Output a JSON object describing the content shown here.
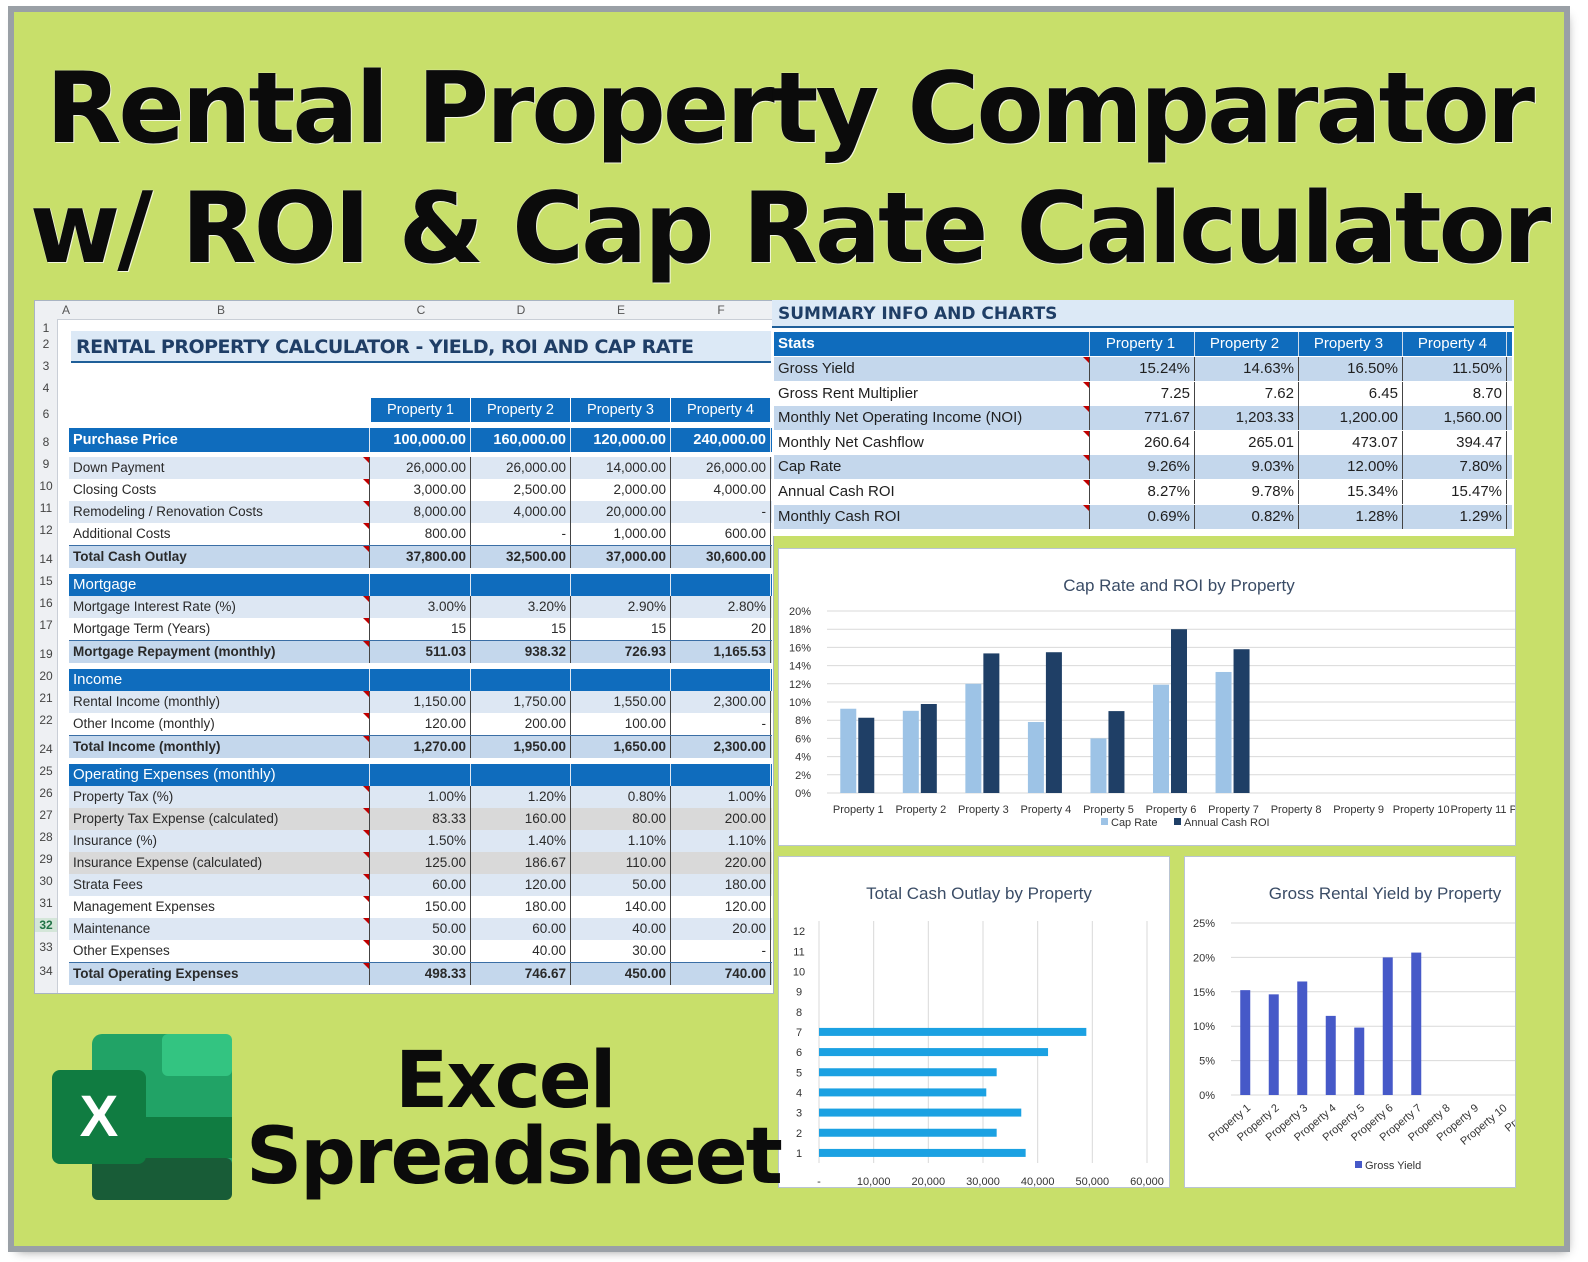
{
  "title": {
    "line1": "Rental Property Comparator",
    "line2": "w/ ROI & Cap Rate Calculator"
  },
  "caption": {
    "line1": "Excel",
    "line2": "Spreadsheet"
  },
  "logo": {
    "letter": "X",
    "icon": "excel-icon",
    "colors": {
      "dark": "#185c37",
      "mid": "#21a366",
      "light": "#33c481",
      "tile": "#107c41"
    }
  },
  "colors": {
    "background": "#c8df6a",
    "accent_blue": "#0f6cbd",
    "light_blue": "#c4d7ec",
    "cap_rate": "#9dc3e6",
    "cash_roi": "#1f3f66",
    "bar_blue": "#1ba1e2",
    "yield_blue": "#4659c8"
  },
  "sheet": {
    "columns": [
      "A",
      "B",
      "C",
      "D",
      "E",
      "F"
    ],
    "title": "RENTAL PROPERTY CALCULATOR - YIELD, ROI AND CAP RATE",
    "properties": [
      "Property 1",
      "Property 2",
      "Property 3",
      "Property 4"
    ],
    "row_numbers": [
      "1",
      "2",
      "3",
      "4",
      "6",
      "8",
      "9",
      "10",
      "11",
      "12",
      "14",
      "15",
      "16",
      "17",
      "19",
      "20",
      "21",
      "22",
      "24",
      "25",
      "26",
      "27",
      "28",
      "29",
      "30",
      "31",
      "32",
      "33",
      "34"
    ],
    "selected_row": "32",
    "purchase": {
      "label": "Purchase Price",
      "values": [
        "100,000.00",
        "160,000.00",
        "120,000.00",
        "240,000.00"
      ]
    },
    "rows": [
      {
        "label": "Down Payment",
        "values": [
          "26,000.00",
          "26,000.00",
          "14,000.00",
          "26,000.00"
        ],
        "kind": "item"
      },
      {
        "label": "Closing Costs",
        "values": [
          "3,000.00",
          "2,500.00",
          "2,000.00",
          "4,000.00"
        ],
        "kind": "alt"
      },
      {
        "label": "Remodeling / Renovation Costs",
        "values": [
          "8,000.00",
          "4,000.00",
          "20,000.00",
          "-"
        ],
        "kind": "item"
      },
      {
        "label": "Additional Costs",
        "values": [
          "800.00",
          "-",
          "1,000.00",
          "600.00"
        ],
        "kind": "alt"
      },
      {
        "label": "Total Cash Outlay",
        "values": [
          "37,800.00",
          "32,500.00",
          "37,000.00",
          "30,600.00"
        ],
        "kind": "total"
      },
      {
        "label": "Mortgage",
        "values": [
          "",
          "",
          "",
          ""
        ],
        "kind": "section"
      },
      {
        "label": "Mortgage Interest Rate (%)",
        "values": [
          "3.00%",
          "3.20%",
          "2.90%",
          "2.80%"
        ],
        "kind": "item"
      },
      {
        "label": "Mortgage Term (Years)",
        "values": [
          "15",
          "15",
          "15",
          "20"
        ],
        "kind": "alt"
      },
      {
        "label": "Mortgage Repayment (monthly)",
        "values": [
          "511.03",
          "938.32",
          "726.93",
          "1,165.53"
        ],
        "kind": "total"
      },
      {
        "label": "Income",
        "values": [
          "",
          "",
          "",
          ""
        ],
        "kind": "section"
      },
      {
        "label": "Rental Income (monthly)",
        "values": [
          "1,150.00",
          "1,750.00",
          "1,550.00",
          "2,300.00"
        ],
        "kind": "item"
      },
      {
        "label": "Other Income (monthly)",
        "values": [
          "120.00",
          "200.00",
          "100.00",
          "-"
        ],
        "kind": "alt"
      },
      {
        "label": "Total Income (monthly)",
        "values": [
          "1,270.00",
          "1,950.00",
          "1,650.00",
          "2,300.00"
        ],
        "kind": "total"
      },
      {
        "label": "Operating Expenses (monthly)",
        "values": [
          "",
          "",
          "",
          ""
        ],
        "kind": "section"
      },
      {
        "label": "Property Tax (%)",
        "values": [
          "1.00%",
          "1.20%",
          "0.80%",
          "1.00%"
        ],
        "kind": "item"
      },
      {
        "label": "Property Tax Expense (calculated)",
        "values": [
          "83.33",
          "160.00",
          "80.00",
          "200.00"
        ],
        "kind": "gray"
      },
      {
        "label": "Insurance (%)",
        "values": [
          "1.50%",
          "1.40%",
          "1.10%",
          "1.10%"
        ],
        "kind": "item"
      },
      {
        "label": "Insurance Expense (calculated)",
        "values": [
          "125.00",
          "186.67",
          "110.00",
          "220.00"
        ],
        "kind": "gray"
      },
      {
        "label": "Strata Fees",
        "values": [
          "60.00",
          "120.00",
          "50.00",
          "180.00"
        ],
        "kind": "item"
      },
      {
        "label": "Management Expenses",
        "values": [
          "150.00",
          "180.00",
          "140.00",
          "120.00"
        ],
        "kind": "alt"
      },
      {
        "label": "Maintenance",
        "values": [
          "50.00",
          "60.00",
          "40.00",
          "20.00"
        ],
        "kind": "item"
      },
      {
        "label": "Other Expenses",
        "values": [
          "30.00",
          "40.00",
          "30.00",
          "-"
        ],
        "kind": "alt"
      },
      {
        "label": "Total Operating Expenses",
        "values": [
          "498.33",
          "746.67",
          "450.00",
          "740.00"
        ],
        "kind": "total"
      }
    ]
  },
  "summary": {
    "title": "SUMMARY INFO AND CHARTS",
    "stats_label": "Stats",
    "properties": [
      "Property 1",
      "Property 2",
      "Property 3",
      "Property 4"
    ],
    "rows": [
      {
        "label": "Gross Yield",
        "values": [
          "15.24%",
          "14.63%",
          "16.50%",
          "11.50%"
        ]
      },
      {
        "label": "Gross Rent Multiplier",
        "values": [
          "7.25",
          "7.62",
          "6.45",
          "8.70"
        ]
      },
      {
        "label": "Monthly Net Operating Income (NOI)",
        "values": [
          "771.67",
          "1,203.33",
          "1,200.00",
          "1,560.00"
        ]
      },
      {
        "label": "Monthly Net Cashflow",
        "values": [
          "260.64",
          "265.01",
          "473.07",
          "394.47"
        ]
      },
      {
        "label": "Cap Rate",
        "values": [
          "9.26%",
          "9.03%",
          "12.00%",
          "7.80%"
        ]
      },
      {
        "label": "Annual Cash ROI",
        "values": [
          "8.27%",
          "9.78%",
          "15.34%",
          "15.47%"
        ]
      },
      {
        "label": "Monthly Cash ROI",
        "values": [
          "0.69%",
          "0.82%",
          "1.28%",
          "1.29%"
        ]
      }
    ]
  },
  "chart_data": [
    {
      "type": "bar",
      "title": "Cap Rate and ROI by Property",
      "categories": [
        "Property 1",
        "Property 2",
        "Property 3",
        "Property 4",
        "Property 5",
        "Property 6",
        "Property 7",
        "Property 8",
        "Property 9",
        "Property 10",
        "Property 11 P"
      ],
      "series": [
        {
          "name": "Cap Rate",
          "values": [
            9.26,
            9.03,
            12.0,
            7.8,
            6.0,
            11.9,
            13.3,
            null,
            null,
            null,
            null
          ]
        },
        {
          "name": "Annual Cash ROI",
          "values": [
            8.27,
            9.78,
            15.34,
            15.47,
            9.0,
            18.0,
            15.8,
            null,
            null,
            null,
            null
          ]
        }
      ],
      "yticks": [
        "0%",
        "2%",
        "4%",
        "6%",
        "8%",
        "10%",
        "12%",
        "14%",
        "16%",
        "18%",
        "20%"
      ],
      "ylim": [
        0,
        20
      ],
      "legend": "bottom",
      "grid": true
    },
    {
      "type": "bar",
      "orientation": "horizontal",
      "title": "Total Cash Outlay by Property",
      "categories": [
        "1",
        "2",
        "3",
        "4",
        "5",
        "6",
        "7",
        "8",
        "9",
        "10",
        "11",
        "12"
      ],
      "values": [
        37800,
        32500,
        37000,
        30600,
        32500,
        41900,
        48900,
        null,
        null,
        null,
        null,
        null
      ],
      "xticks": [
        "-",
        "10,000",
        "20,000",
        "30,000",
        "40,000",
        "50,000",
        "60,000"
      ],
      "xlim": [
        0,
        60000
      ],
      "grid": true
    },
    {
      "type": "bar",
      "title": "Gross Rental Yield by Property",
      "categories": [
        "Property 1",
        "Property 2",
        "Property 3",
        "Property 4",
        "Property 5",
        "Property 6",
        "Property 7",
        "Property 8",
        "Property 9",
        "Property 10",
        "Propert"
      ],
      "series": [
        {
          "name": "Gross Yield",
          "values": [
            15.24,
            14.63,
            16.5,
            11.5,
            9.8,
            20.0,
            20.7,
            null,
            null,
            null,
            null
          ]
        }
      ],
      "yticks": [
        "0%",
        "5%",
        "10%",
        "15%",
        "20%",
        "25%"
      ],
      "ylim": [
        0,
        25
      ],
      "legend": "bottom",
      "grid": true
    }
  ]
}
